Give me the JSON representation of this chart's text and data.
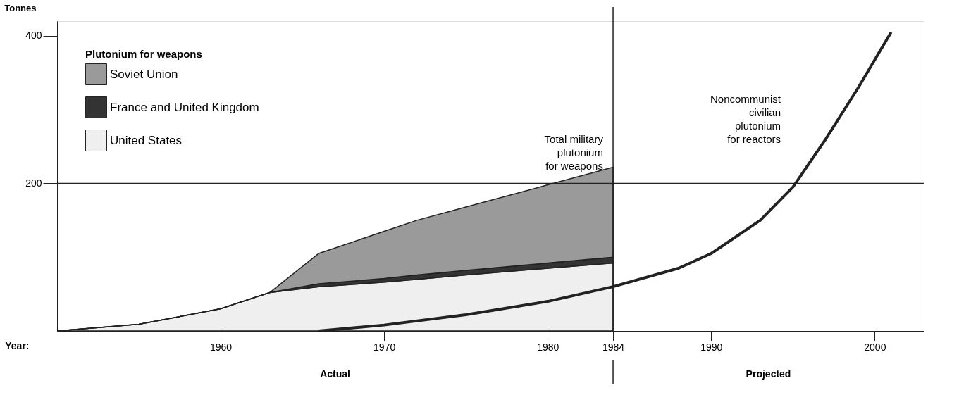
{
  "chart_data": {
    "type": "area",
    "stacked": true,
    "xlabel": "Year:",
    "ylabel": "Tonnes",
    "legend_title": "Plutonium for weapons",
    "legend": "top left",
    "grid": false,
    "x": [
      1950,
      1955,
      1960,
      1963,
      1966,
      1970,
      1972,
      1975,
      1980,
      1984
    ],
    "xlim": [
      1950,
      2003
    ],
    "xticks": [
      1960,
      1970,
      1980,
      1984,
      1990,
      2000
    ],
    "ylim": [
      0,
      420
    ],
    "yticks": [
      200,
      400
    ],
    "series": [
      {
        "name": "United States",
        "color": "#efefef",
        "values": [
          0,
          9,
          30,
          52,
          60,
          66,
          70,
          76,
          85,
          92
        ]
      },
      {
        "name": "France and United Kingdom",
        "color": "#333333",
        "values": [
          0,
          0,
          0,
          0,
          4,
          5,
          6,
          6,
          7,
          8
        ]
      },
      {
        "name": "Soviet Union",
        "color": "#9a9a9a",
        "values": [
          0,
          0,
          0,
          0,
          41,
          64,
          74,
          86,
          106,
          122
        ]
      },
      {
        "type": "line",
        "color": "#222222",
        "x": [
          1966,
          1970,
          1975,
          1980,
          1984,
          1988,
          1990,
          1993,
          1995,
          1997,
          1999,
          2001
        ],
        "values": [
          0,
          8,
          22,
          40,
          60,
          85,
          105,
          150,
          195,
          260,
          330,
          405
        ]
      }
    ],
    "ref_lines": [
      {
        "axis": "y",
        "value": 200,
        "color": "#222222"
      },
      {
        "axis": "x",
        "value": 1984,
        "color": "#222222"
      }
    ],
    "annotations": [
      "Total military\nplutonium\nfor weapons",
      "Noncommunist\ncivilian\nplutonium\nfor reactors",
      "Actual",
      "Projected"
    ]
  }
}
